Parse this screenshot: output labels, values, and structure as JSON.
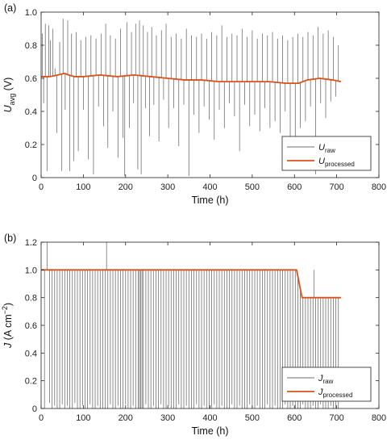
{
  "chart_data": [
    {
      "type": "line",
      "panel_label": "(a)",
      "xlabel": "Time (h)",
      "ylabel": {
        "main": "U",
        "sub": "avg",
        "unit": " (V)"
      },
      "xlim": [
        0,
        800
      ],
      "ylim": [
        0,
        1
      ],
      "xticks": [
        0,
        100,
        200,
        300,
        400,
        500,
        600,
        700,
        800
      ],
      "yticks": [
        0,
        0.2,
        0.4,
        0.6,
        0.8,
        1
      ],
      "ytick_labels": [
        "0",
        "0.2",
        "0.4",
        "0.6",
        "0.8",
        "1.0"
      ],
      "grid": false,
      "legend_position": "bottom-right",
      "series": [
        {
          "name": "U raw",
          "legend_main": "U",
          "legend_sub": "raw",
          "color": "#707070",
          "style": "baseline-with-spikes",
          "baseline": {
            "x": [
              0,
              20,
              40,
              55,
              65,
              80,
              100,
              140,
              180,
              220,
              260,
              300,
              340,
              380,
              420,
              460,
              500,
              540,
              580,
              600,
              610,
              630,
              660,
              690,
              710
            ],
            "y": [
              0.61,
              0.61,
              0.62,
              0.63,
              0.62,
              0.61,
              0.61,
              0.62,
              0.61,
              0.62,
              0.61,
              0.6,
              0.59,
              0.59,
              0.58,
              0.58,
              0.58,
              0.58,
              0.57,
              0.57,
              0.57,
              0.59,
              0.6,
              0.59,
              0.58
            ]
          },
          "spikes": {
            "x": [
              3,
              6,
              10,
              14,
              18,
              22,
              28,
              33,
              37,
              44,
              49,
              52,
              57,
              63,
              68,
              72,
              77,
              83,
              88,
              94,
              100,
              106,
              112,
              118,
              124,
              130,
              136,
              142,
              148,
              153,
              158,
              164,
              170,
              176,
              182,
              188,
              194,
              198,
              203,
              209,
              214,
              219,
              224,
              229,
              233,
              237,
              242,
              247,
              252,
              257,
              262,
              267,
              273,
              279,
              285,
              290,
              296,
              302,
              308,
              314,
              320,
              326,
              332,
              338,
              344,
              350,
              356,
              362,
              368,
              374,
              380,
              386,
              392,
              398,
              404,
              410,
              416,
              422,
              428,
              434,
              440,
              446,
              452,
              458,
              464,
              470,
              476,
              482,
              488,
              494,
              500,
              506,
              512,
              518,
              524,
              530,
              536,
              542,
              548,
              554,
              560,
              566,
              572,
              578,
              584,
              590,
              596,
              602,
              608,
              614,
              620,
              626,
              632,
              638,
              644,
              650,
              656,
              662,
              668,
              674,
              680,
              686,
              692,
              698,
              704
            ],
            "y": [
              0.87,
              0.45,
              0.93,
              0.04,
              0.92,
              0.83,
              0.9,
              0.66,
              0.27,
              0.82,
              0.04,
              0.96,
              0.41,
              0.95,
              0.04,
              0.87,
              0.1,
              0.88,
              0.16,
              0.83,
              0.41,
              0.85,
              0.11,
              0.86,
              0.02,
              0.84,
              0.43,
              0.87,
              0.31,
              0.93,
              0.18,
              0.86,
              0.4,
              0.84,
              0.12,
              0.9,
              0.24,
              0.01,
              0.94,
              0.3,
              0.88,
              0.45,
              0.93,
              0.05,
              0.95,
              0.02,
              0.92,
              0.42,
              0.88,
              0.25,
              0.91,
              0.44,
              0.86,
              0.22,
              0.89,
              0.47,
              0.93,
              0.3,
              0.85,
              0.42,
              0.87,
              0.19,
              0.84,
              0.44,
              0.9,
              0.01,
              0.86,
              0.38,
              0.85,
              0.27,
              0.87,
              0.43,
              0.84,
              0.35,
              0.88,
              0.23,
              0.86,
              0.41,
              0.92,
              0.3,
              0.85,
              0.45,
              0.87,
              0.37,
              0.86,
              0.16,
              0.9,
              0.44,
              0.85,
              0.31,
              0.89,
              0.38,
              0.84,
              0.28,
              0.87,
              0.42,
              0.86,
              0.3,
              0.88,
              0.34,
              0.84,
              0.27,
              0.86,
              0.4,
              0.83,
              0.16,
              0.85,
              0.06,
              0.87,
              0.3,
              0.85,
              0.34,
              0.88,
              0.43,
              0.86,
              0.02,
              0.91,
              0.45,
              0.87,
              0.36,
              0.89,
              0.46,
              0.85,
              0.49,
              0.8
            ]
          }
        },
        {
          "name": "U processed",
          "legend_main": "U",
          "legend_sub": "processed",
          "color": "#d95319",
          "style": "line",
          "x": [
            0,
            20,
            40,
            55,
            65,
            80,
            100,
            140,
            180,
            220,
            260,
            300,
            340,
            380,
            420,
            460,
            500,
            540,
            580,
            600,
            610,
            630,
            660,
            690,
            710
          ],
          "y": [
            0.61,
            0.61,
            0.62,
            0.63,
            0.62,
            0.61,
            0.61,
            0.62,
            0.61,
            0.62,
            0.61,
            0.6,
            0.59,
            0.59,
            0.58,
            0.58,
            0.58,
            0.58,
            0.57,
            0.57,
            0.57,
            0.59,
            0.6,
            0.59,
            0.58
          ]
        }
      ]
    },
    {
      "type": "line",
      "panel_label": "(b)",
      "xlabel": "Time (h)",
      "ylabel": {
        "main": "J",
        "sub": "",
        "unit": " (A cm",
        "sup": "−2",
        "close": ")"
      },
      "xlim": [
        0,
        800
      ],
      "ylim": [
        0,
        1.2
      ],
      "xticks": [
        0,
        100,
        200,
        300,
        400,
        500,
        600,
        700,
        800
      ],
      "yticks": [
        0,
        0.2,
        0.4,
        0.6,
        0.8,
        1,
        1.2
      ],
      "ytick_labels": [
        "0",
        "0.2",
        "0.4",
        "0.6",
        "0.8",
        "1.0",
        "1.2"
      ],
      "grid": false,
      "legend_position": "bottom-right",
      "series": [
        {
          "name": "J raw",
          "legend_main": "J",
          "legend_sub": "raw",
          "color": "#707070",
          "style": "baseline-with-spikes",
          "baseline": {
            "x": [
              0,
              605,
              618,
              710
            ],
            "y": [
              1.0,
              1.0,
              0.8,
              0.8
            ]
          },
          "spikes": {
            "x": [
              8,
              14,
              20,
              26,
              32,
              38,
              44,
              50,
              56,
              62,
              68,
              74,
              80,
              86,
              92,
              98,
              104,
              110,
              116,
              122,
              128,
              134,
              140,
              146,
              152,
              155,
              158,
              164,
              170,
              176,
              182,
              188,
              194,
              200,
              206,
              212,
              218,
              224,
              230,
              233,
              236,
              239,
              242,
              248,
              254,
              260,
              266,
              272,
              278,
              284,
              290,
              296,
              302,
              308,
              314,
              320,
              326,
              332,
              338,
              344,
              350,
              356,
              362,
              368,
              374,
              380,
              386,
              392,
              398,
              404,
              410,
              416,
              422,
              428,
              434,
              440,
              446,
              452,
              458,
              464,
              470,
              476,
              482,
              488,
              494,
              500,
              506,
              512,
              518,
              524,
              530,
              536,
              542,
              548,
              554,
              560,
              566,
              572,
              578,
              584,
              590,
              596,
              602,
              608,
              614,
              620,
              626,
              632,
              638,
              644,
              646,
              650,
              656,
              662,
              668,
              674,
              680,
              686,
              692,
              698,
              704
            ],
            "y": [
              0.0,
              1.2,
              0.04,
              0.0,
              0.02,
              0.0,
              0.0,
              0.03,
              0.0,
              0.02,
              0.0,
              0.0,
              0.04,
              0.0,
              0.0,
              0.02,
              0.0,
              0.0,
              0.03,
              0.0,
              0.0,
              0.02,
              0.0,
              0.0,
              0.0,
              1.2,
              0.0,
              0.03,
              0.0,
              0.0,
              0.02,
              0.0,
              0.0,
              0.03,
              0.0,
              0.0,
              0.02,
              0.0,
              0.0,
              0.0,
              0.0,
              0.0,
              0.0,
              0.03,
              0.0,
              0.0,
              0.02,
              0.0,
              0.0,
              0.03,
              0.0,
              0.0,
              0.02,
              0.0,
              0.0,
              0.0,
              0.03,
              0.0,
              0.0,
              0.02,
              0.0,
              0.0,
              0.0,
              0.03,
              0.0,
              0.0,
              0.02,
              0.0,
              0.0,
              0.0,
              0.03,
              0.0,
              0.0,
              0.02,
              0.0,
              0.0,
              0.0,
              0.03,
              0.0,
              0.0,
              0.02,
              0.0,
              0.0,
              0.0,
              0.03,
              0.0,
              0.0,
              0.02,
              0.0,
              0.0,
              0.0,
              0.03,
              0.0,
              0.0,
              0.02,
              0.0,
              0.0,
              0.0,
              0.03,
              0.0,
              0.0,
              0.02,
              0.0,
              0.0,
              0.0,
              0.03,
              0.0,
              0.0,
              0.0,
              0.02,
              1.0,
              0.0,
              0.0,
              0.03,
              0.0,
              0.0,
              0.0,
              0.02,
              0.0,
              0.0,
              0.0
            ]
          }
        },
        {
          "name": "J processed",
          "legend_main": "J",
          "legend_sub": "processed",
          "color": "#d95319",
          "style": "line",
          "x": [
            0,
            605,
            618,
            710
          ],
          "y": [
            1.0,
            1.0,
            0.8,
            0.8
          ]
        }
      ]
    }
  ]
}
